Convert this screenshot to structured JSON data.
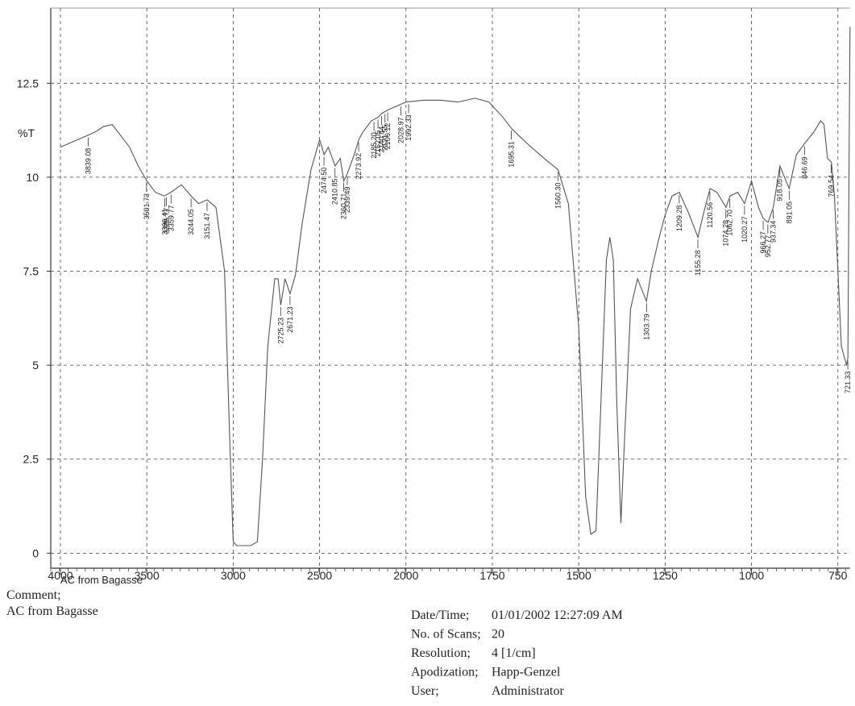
{
  "chart_data": {
    "type": "line",
    "y_label": "%T",
    "x_label": "AC from Bagasse",
    "comment": {
      "label": "Comment;",
      "text": "AC from Bagasse"
    },
    "info": [
      {
        "key": "Date/Time;",
        "value": "01/01/2002 12:27:09 AM"
      },
      {
        "key": "No. of Scans;",
        "value": "20"
      },
      {
        "key": "Resolution;",
        "value": "4 [1/cm]"
      },
      {
        "key": "Apodization;",
        "value": "Happ-Genzel"
      },
      {
        "key": "User;",
        "value": "Administrator"
      }
    ],
    "xlim": [
      4056,
      715
    ],
    "xticks": [
      4000,
      3500,
      3000,
      2500,
      2000,
      1750,
      1500,
      1250,
      1000,
      750
    ],
    "ylim": [
      -0.4,
      14.5
    ],
    "yticks": [
      0,
      2.5,
      5,
      7.5,
      10,
      12.5
    ],
    "grid": true,
    "color": "#555555",
    "x": [
      4000,
      3950,
      3900,
      3850,
      3800,
      3750,
      3700,
      3650,
      3600,
      3550,
      3500,
      3450,
      3400,
      3360,
      3300,
      3244,
      3200,
      3151,
      3100,
      3050,
      3020,
      3000,
      2980,
      2900,
      2860,
      2830,
      2800,
      2760,
      2740,
      2725,
      2700,
      2671,
      2640,
      2600,
      2550,
      2500,
      2474,
      2450,
      2410,
      2380,
      2360,
      2339,
      2300,
      2273,
      2250,
      2200,
      2160,
      2140,
      2100,
      2050,
      2000,
      1950,
      1900,
      1850,
      1800,
      1760,
      1720,
      1695,
      1650,
      1600,
      1560,
      1530,
      1500,
      1480,
      1465,
      1450,
      1440,
      1420,
      1410,
      1400,
      1390,
      1378,
      1370,
      1350,
      1330,
      1304,
      1290,
      1270,
      1250,
      1230,
      1209,
      1180,
      1155,
      1140,
      1120,
      1100,
      1074,
      1062,
      1040,
      1020,
      1000,
      980,
      966,
      952,
      937,
      918,
      891,
      870,
      846,
      820,
      800,
      790,
      780,
      769,
      760,
      740,
      725,
      721,
      718,
      715
    ],
    "values": [
      10.8,
      10.9,
      11.0,
      11.1,
      11.2,
      11.35,
      11.4,
      11.1,
      10.8,
      10.3,
      9.9,
      9.6,
      9.5,
      9.6,
      9.8,
      9.5,
      9.3,
      9.4,
      9.2,
      7.5,
      3,
      0.3,
      0.2,
      0.2,
      0.3,
      2.5,
      5.5,
      7.3,
      7.3,
      6.6,
      7.3,
      6.9,
      7.4,
      8.8,
      10.2,
      11.0,
      10.6,
      10.8,
      10.3,
      10.5,
      9.9,
      10.1,
      10.6,
      11.0,
      11.2,
      11.5,
      11.6,
      11.7,
      11.8,
      11.9,
      12.0,
      12.05,
      12.05,
      12.0,
      12.1,
      12.0,
      11.6,
      11.3,
      10.9,
      10.5,
      10.2,
      9.3,
      6,
      1.5,
      0.5,
      0.6,
      3,
      7.8,
      8.4,
      7.8,
      4,
      0.8,
      2.5,
      6.5,
      7.3,
      6.7,
      7.5,
      8.3,
      9.0,
      9.5,
      9.6,
      9.0,
      8.4,
      9.0,
      9.7,
      9.6,
      9.2,
      9.5,
      9.6,
      9.3,
      9.9,
      9.2,
      8.9,
      8.8,
      9.2,
      10.3,
      9.7,
      10.6,
      10.9,
      11.2,
      11.5,
      11.4,
      10.5,
      10.4,
      9.5,
      5.5,
      5.0,
      5.2,
      10,
      14
    ],
    "peaks": [
      {
        "value": 3839.08,
        "label": "3839.08"
      },
      {
        "value": 3501.73,
        "label": "3501.73"
      },
      {
        "value": 3396.41,
        "label": "3396.41"
      },
      {
        "value": 3386.77,
        "label": "3386.77"
      },
      {
        "value": 3359.77,
        "label": "3359.77"
      },
      {
        "value": 3244.05,
        "label": "3244.05"
      },
      {
        "value": 3151.47,
        "label": "3151.47"
      },
      {
        "value": 2725.23,
        "label": "2725.23"
      },
      {
        "value": 2671.23,
        "label": "2671.23"
      },
      {
        "value": 2474.5,
        "label": "2474.50"
      },
      {
        "value": 2410.85,
        "label": "2410.85"
      },
      {
        "value": 2360.71,
        "label": "2360.71"
      },
      {
        "value": 2339.49,
        "label": "2339.49"
      },
      {
        "value": 2273.92,
        "label": "2273.92"
      },
      {
        "value": 2185.2,
        "label": "2185.20"
      },
      {
        "value": 2162.05,
        "label": "2162.05"
      },
      {
        "value": 2140.84,
        "label": "2140.84"
      },
      {
        "value": 2121.55,
        "label": "2121.55"
      },
      {
        "value": 2106.12,
        "label": "2106.12"
      },
      {
        "value": 2028.97,
        "label": "2028.97"
      },
      {
        "value": 1992.33,
        "label": "1992.33"
      },
      {
        "value": 1695.31,
        "label": "1695.31"
      },
      {
        "value": 1560.3,
        "label": "1560.30"
      },
      {
        "value": 1303.79,
        "label": "1303.79"
      },
      {
        "value": 1209.28,
        "label": "1209.28"
      },
      {
        "value": 1155.28,
        "label": "1155.28"
      },
      {
        "value": 1120.56,
        "label": "1120.56"
      },
      {
        "value": 1074.28,
        "label": "1074.28"
      },
      {
        "value": 1062.7,
        "label": "1062.70"
      },
      {
        "value": 1020.27,
        "label": "1020.27"
      },
      {
        "value": 966.27,
        "label": "966.27"
      },
      {
        "value": 952.77,
        "label": "952.77"
      },
      {
        "value": 937.34,
        "label": "937.34"
      },
      {
        "value": 918.05,
        "label": "918.05"
      },
      {
        "value": 891.05,
        "label": "891.05"
      },
      {
        "value": 846.69,
        "label": "846.69"
      },
      {
        "value": 769.54,
        "label": "769.54"
      },
      {
        "value": 721.33,
        "label": "721.33"
      }
    ]
  }
}
